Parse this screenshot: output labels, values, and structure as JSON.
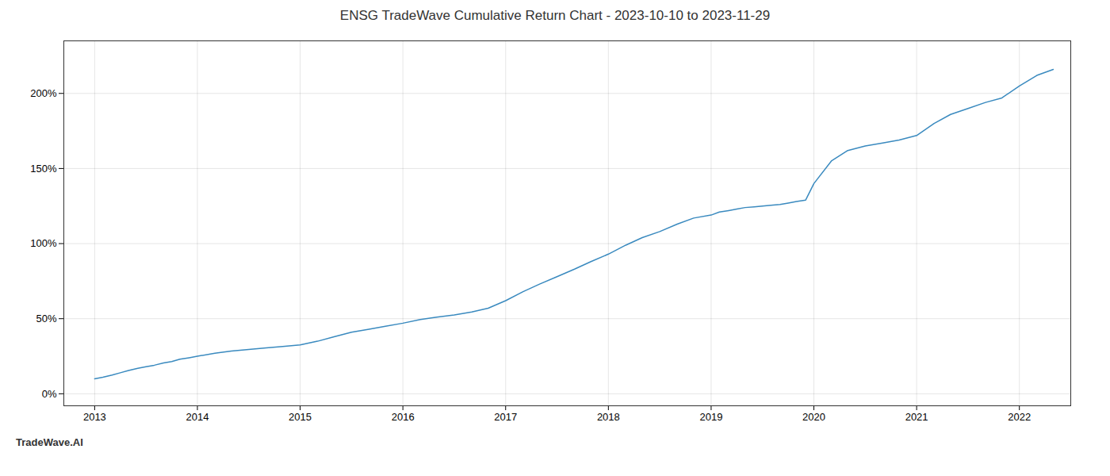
{
  "chart_data": {
    "type": "line",
    "title": "ENSG TradeWave Cumulative Return Chart - 2023-10-10 to 2023-11-29",
    "annotations": [
      "TradeWave.AI"
    ],
    "color": "#3a8abf",
    "grid": true,
    "x": [
      2013.0,
      2013.08,
      2013.17,
      2013.25,
      2013.33,
      2013.42,
      2013.5,
      2013.58,
      2013.67,
      2013.75,
      2013.83,
      2013.92,
      2014.0,
      2014.17,
      2014.33,
      2014.5,
      2014.67,
      2014.83,
      2015.0,
      2015.17,
      2015.33,
      2015.5,
      2015.67,
      2015.83,
      2016.0,
      2016.17,
      2016.33,
      2016.5,
      2016.67,
      2016.83,
      2017.0,
      2017.17,
      2017.33,
      2017.5,
      2017.67,
      2017.83,
      2018.0,
      2018.17,
      2018.33,
      2018.5,
      2018.67,
      2018.83,
      2019.0,
      2019.08,
      2019.17,
      2019.25,
      2019.33,
      2019.42,
      2019.5,
      2019.58,
      2019.67,
      2019.75,
      2019.83,
      2019.92,
      2020.0,
      2020.17,
      2020.33,
      2020.5,
      2020.67,
      2020.83,
      2021.0,
      2021.17,
      2021.33,
      2021.5,
      2021.67,
      2021.83,
      2022.0,
      2022.17,
      2022.33
    ],
    "values": [
      10,
      11,
      12.5,
      14,
      15.5,
      17,
      18,
      19,
      20.5,
      21.5,
      23,
      24,
      25,
      27,
      28.5,
      29.5,
      30.5,
      31.5,
      32.5,
      35,
      38,
      41,
      43,
      45,
      47,
      49.5,
      51,
      52.5,
      54.5,
      57,
      62,
      68,
      73,
      78,
      83,
      88,
      93,
      99,
      104,
      108,
      113,
      117,
      119,
      121,
      122,
      123,
      124,
      124.5,
      125,
      125.5,
      126,
      127,
      128,
      129,
      140,
      155,
      162,
      165,
      167,
      169,
      172,
      180,
      186,
      190,
      194,
      197,
      205,
      212,
      216
    ],
    "xlim": [
      2012.7,
      2022.5
    ],
    "xticks": [
      2013,
      2014,
      2015,
      2016,
      2017,
      2018,
      2019,
      2020,
      2021,
      2022
    ],
    "ylim": [
      -8,
      235
    ],
    "yticks": [
      {
        "value": 0,
        "label": "0%"
      },
      {
        "value": 50,
        "label": "50%"
      },
      {
        "value": 100,
        "label": "100%"
      },
      {
        "value": 150,
        "label": "150%"
      },
      {
        "value": 200,
        "label": "200%"
      }
    ]
  }
}
